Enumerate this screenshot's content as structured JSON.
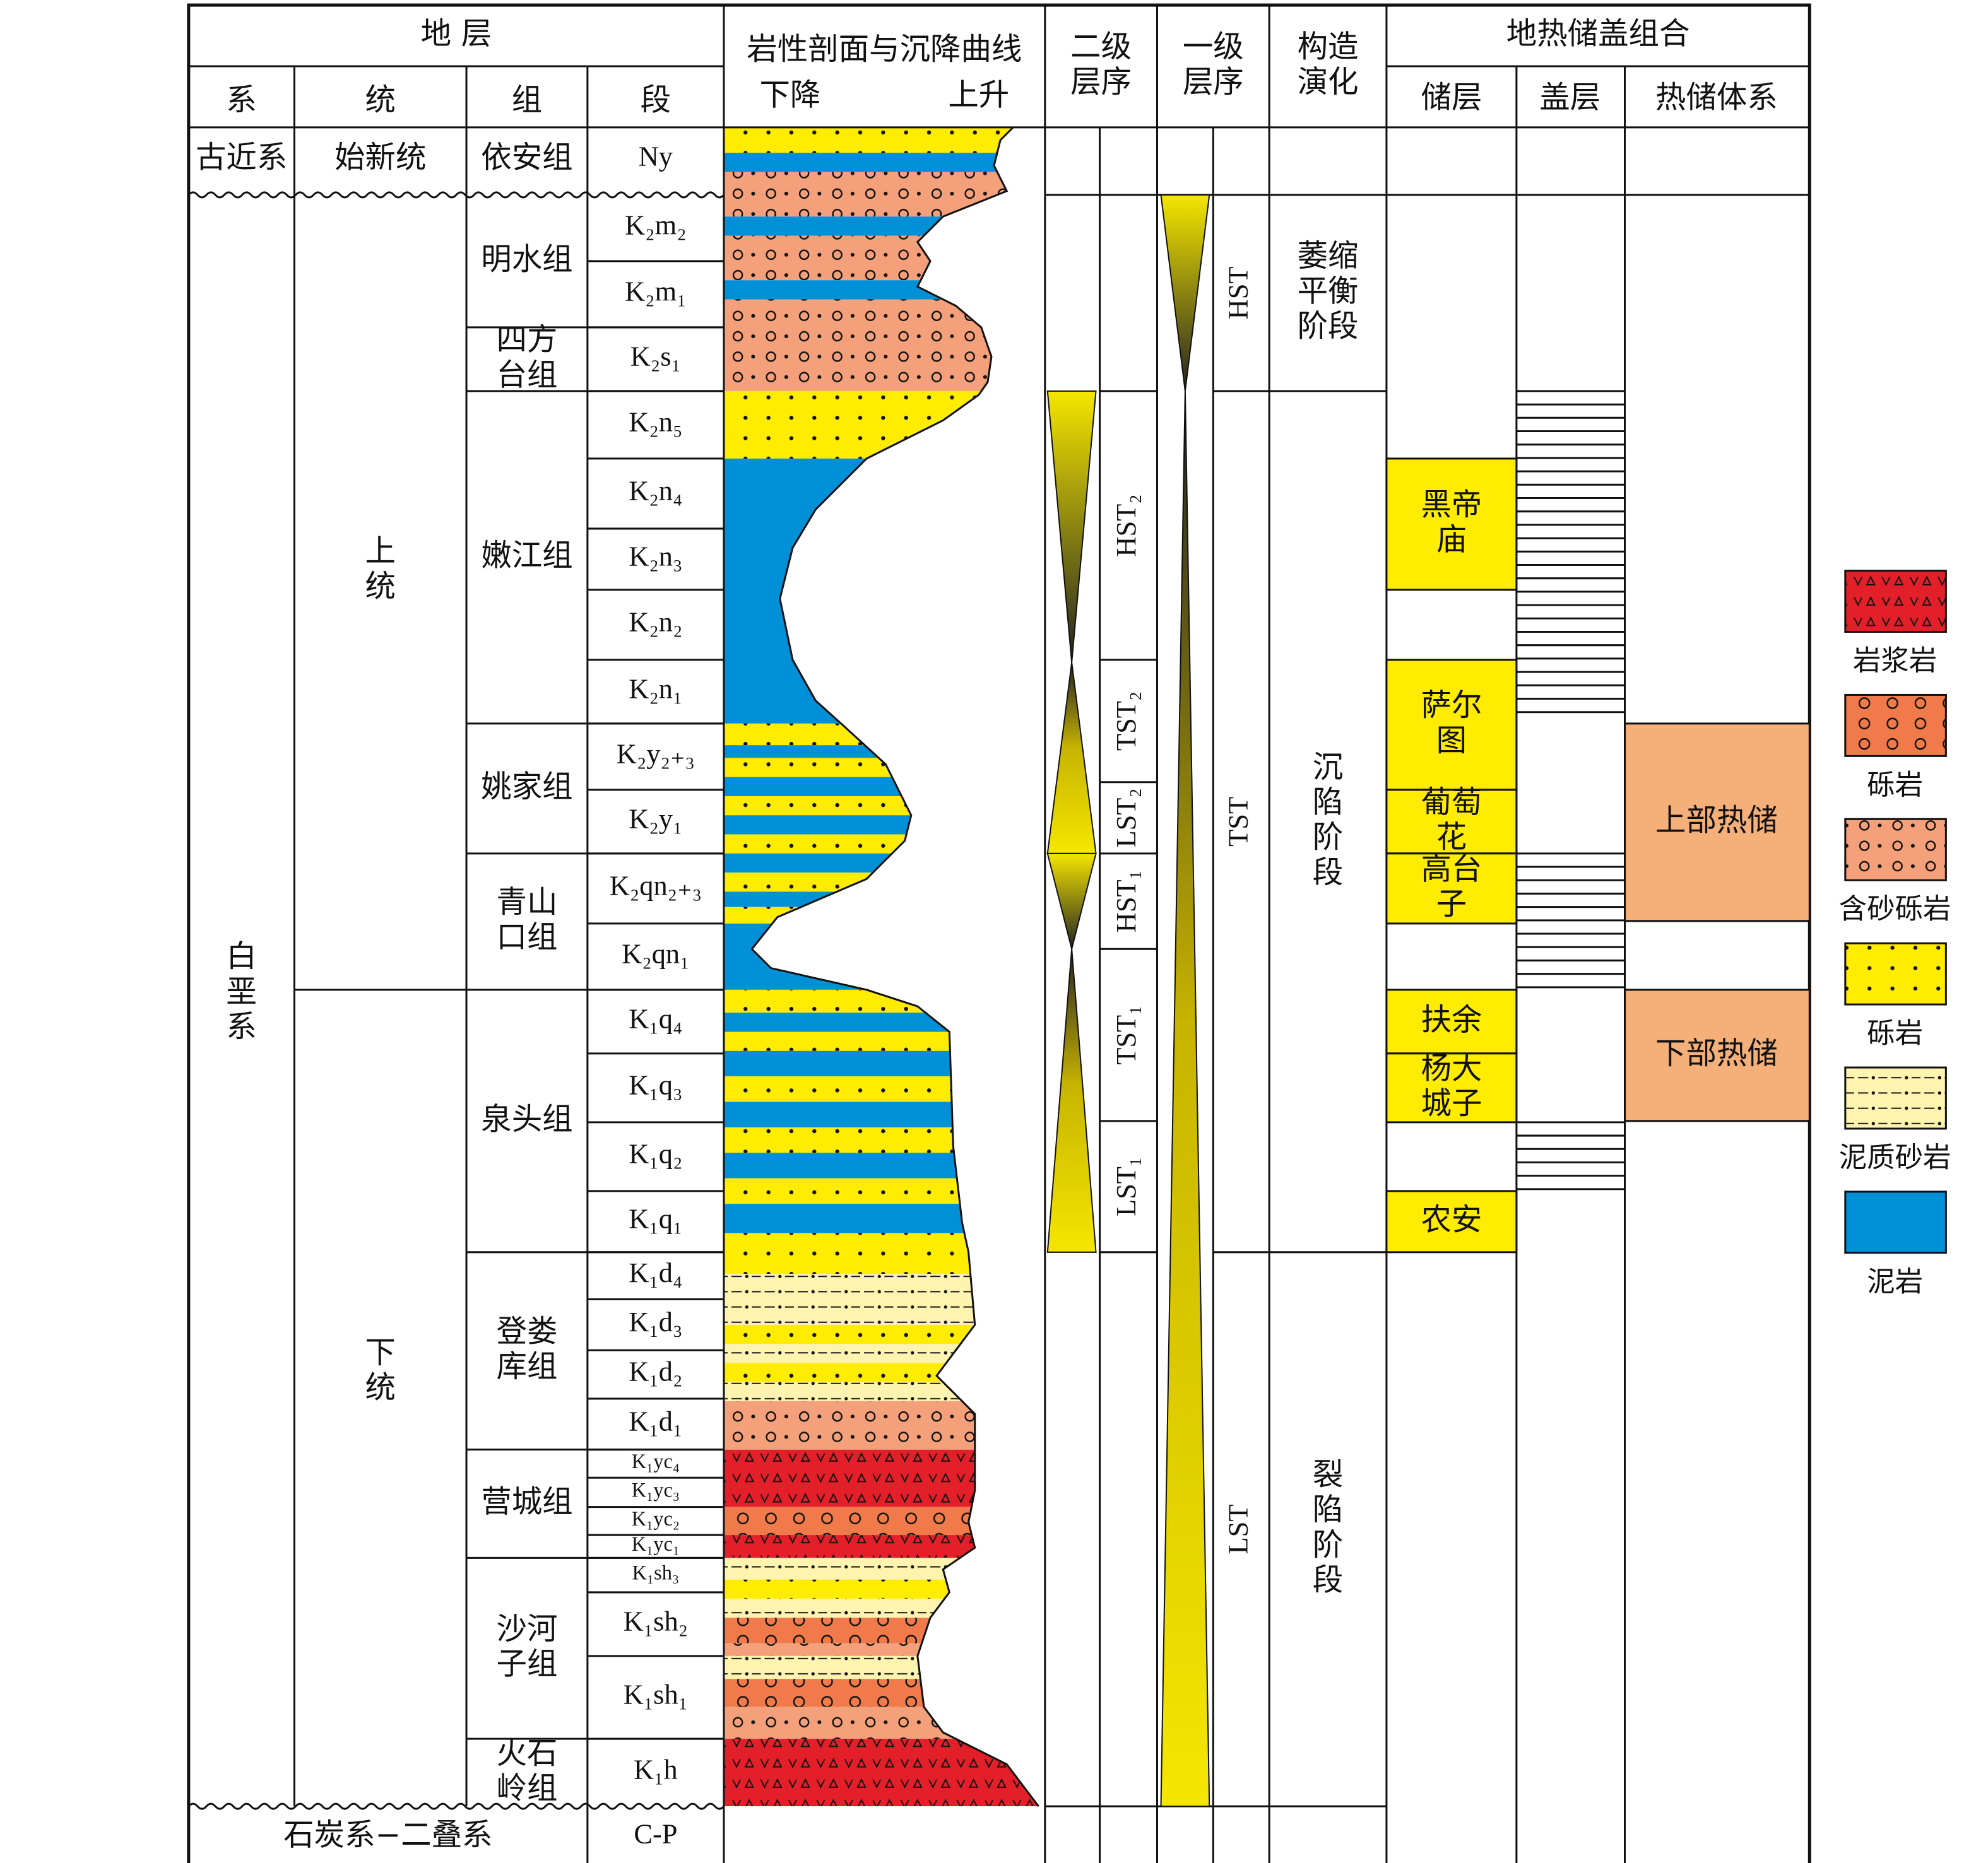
{
  "header": {
    "stratum": "地 层",
    "system": "系",
    "series": "统",
    "formation": "组",
    "member": "段",
    "lithology": "岩性剖面与沉降曲线",
    "down": "下降",
    "up": "上升",
    "second_order": "二级层序",
    "first_order": "一级层序",
    "tectonic": "构造演化",
    "geothermal": "地热储盖组合",
    "reservoir": "储层",
    "caprock": "盖层",
    "thermal_system": "热储体系"
  },
  "top_row": {
    "system": "古近系",
    "series": "始新统",
    "formation": "依安组",
    "member": "Ny"
  },
  "cretaceous": {
    "system": "白垩系",
    "series": [
      "上统",
      "下统"
    ]
  },
  "formations": [
    "明水组",
    "四方台组",
    "嫩江组",
    "姚家组",
    "青山口组",
    "泉头组",
    "登娄库组",
    "营城组",
    "沙河子组",
    "火石岭组"
  ],
  "members": [
    "K₂m₂",
    "K₂m₁",
    "K₂s₁",
    "K₂n₅",
    "K₂n₄",
    "K₂n₃",
    "K₂n₂",
    "K₂n₁",
    "K₂y₂₊₃",
    "K₂y₁",
    "K₂qn₂₊₃",
    "K₂qn₁",
    "K₁q₄",
    "K₁q₃",
    "K₁q₂",
    "K₁q₁",
    "K₁d₄",
    "K₁d₃",
    "K₁d₂",
    "K₁d₁",
    "K₁yc₄",
    "K₁yc₃",
    "K₁yc₂",
    "K₁yc₁",
    "K₁sh₃",
    "K₁sh₂",
    "K₁sh₁",
    "K₁h"
  ],
  "bottom_row": {
    "system": "石炭系−二叠系",
    "member": "C-P"
  },
  "second_order": [
    "HST₂",
    "TST₂",
    "LST₂",
    "HST₁",
    "TST₁",
    "LST₁"
  ],
  "first_order": [
    "HST",
    "TST",
    "LST"
  ],
  "tectonic": [
    "萎缩平衡阶段",
    "沉陷阶段",
    "裂陷阶段"
  ],
  "reservoirs": [
    "黑帝庙",
    "萨尔图",
    "葡萄花",
    "高台子",
    "扶余",
    "杨大城子",
    "农安"
  ],
  "thermal_systems": [
    "上部热储",
    "下部热储"
  ],
  "legend": [
    "岩浆岩",
    "砾岩",
    "含砂砾岩",
    "砾岩",
    "泥质砂岩",
    "泥岩"
  ]
}
